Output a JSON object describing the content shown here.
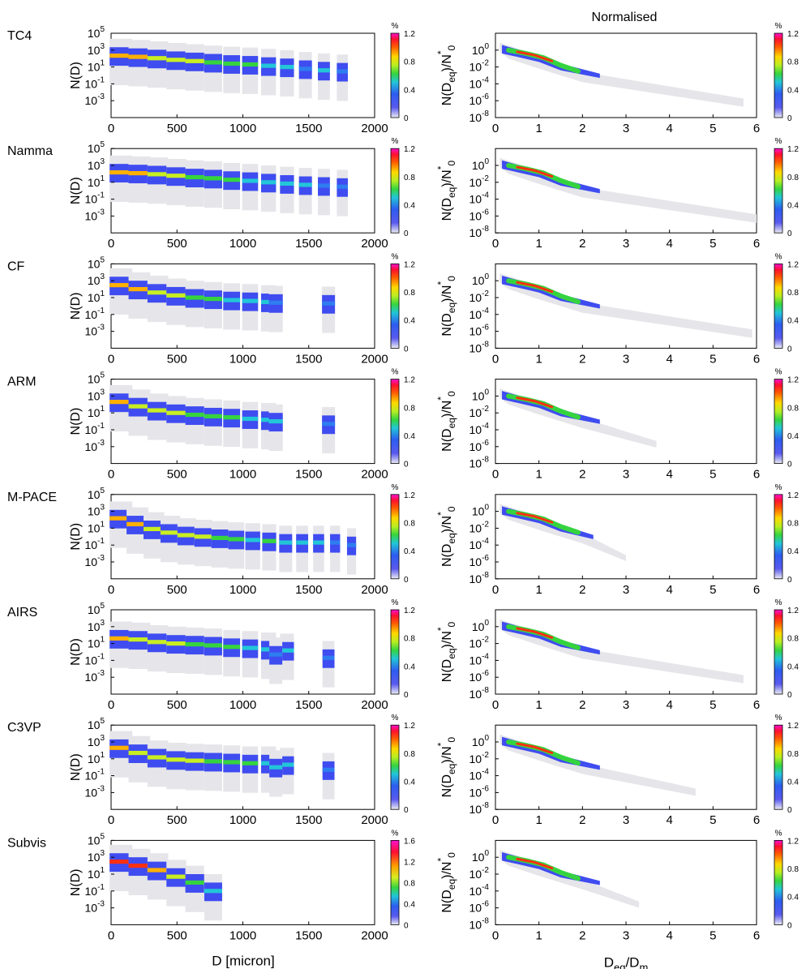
{
  "figure_title": "Normalised",
  "chart_data": {
    "type": "heatmap",
    "rows": [
      {
        "label": "TC4",
        "left_cbar_max": "1.2",
        "right_tail_end": 5.7,
        "left_peaks": [
          220,
          160,
          110,
          70,
          50,
          35,
          25,
          20,
          14,
          10,
          6,
          4,
          3
        ]
      },
      {
        "label": "Namma",
        "left_cbar_max": "1.2",
        "right_tail_end": 6.0,
        "left_peaks": [
          150,
          120,
          90,
          60,
          40,
          30,
          20,
          15,
          10,
          7,
          5,
          4,
          3
        ]
      },
      {
        "label": "CF",
        "left_cbar_max": "1.2",
        "right_tail_end": 5.9,
        "left_peaks": [
          300,
          100,
          40,
          18,
          10,
          7,
          5,
          4,
          3,
          2.5,
          2
        ]
      },
      {
        "label": "ARM",
        "left_cbar_max": "1.2",
        "right_tail_end": 3.7,
        "left_peaks": [
          200,
          60,
          20,
          10,
          6,
          4,
          3,
          2,
          1.5,
          1,
          0.5
        ]
      },
      {
        "label": "M-PACE",
        "left_cbar_max": "1.2",
        "right_tail_end": 3.0,
        "left_peaks": [
          150,
          30,
          8,
          3,
          1.5,
          1,
          0.7,
          0.5,
          0.4,
          0.3,
          0.2,
          0.2,
          0.2,
          0.2,
          0.1
        ]
      },
      {
        "label": "AIRS",
        "left_cbar_max": "1.2",
        "right_tail_end": 5.7,
        "left_peaks": [
          40,
          30,
          15,
          10,
          8,
          6,
          4,
          3,
          2,
          1.5,
          0.5,
          0.2
        ]
      },
      {
        "label": "C3VP",
        "left_cbar_max": "1.2",
        "right_tail_end": 4.6,
        "left_peaks": [
          200,
          50,
          15,
          8,
          6,
          5,
          4,
          3,
          3,
          2,
          1,
          0.5
        ]
      },
      {
        "label": "Subvis",
        "left_cbar_max": "1.6",
        "right_tail_end": 3.3,
        "left_peaks": [
          300,
          100,
          30,
          5,
          1,
          0.1
        ]
      }
    ],
    "left_panel": {
      "xlabel": "D [micron]",
      "ylabel": "N(D)",
      "xlim": [
        0,
        2000
      ],
      "xticks": [
        "0",
        "500",
        "1000",
        "1500",
        "2000"
      ],
      "ylim_exponent": [
        -5,
        5
      ],
      "ytick_exponents": [
        "5",
        "3",
        "1",
        "-1",
        "-3"
      ],
      "ytick_base": "10"
    },
    "right_panel": {
      "xlabel_main": "D",
      "xlabel_sub1": "eq",
      "xlabel_mid": "/D",
      "xlabel_sub2": "m",
      "ylabel_main": "N(D",
      "ylabel_sub": "eq",
      "ylabel_mid": ")/N",
      "ylabel_star": "*",
      "ylabel_sub0": "0",
      "xlim": [
        0,
        6
      ],
      "xticks": [
        "0",
        "1",
        "2",
        "3",
        "4",
        "5",
        "6"
      ],
      "ylim_exponent": [
        -8,
        2
      ],
      "ytick_exponents": [
        "0",
        "-2",
        "-4",
        "-6",
        "-8"
      ],
      "ytick_base": "10"
    },
    "colorbar": {
      "unit": "%",
      "ticks": [
        "0",
        "0.4",
        "0.8"
      ],
      "ticks_subvis": [
        "0",
        "0.4",
        "0.8",
        "1.2"
      ],
      "colors": [
        "#ececf0",
        "#3a3ae0",
        "#2f7df0",
        "#22d3c0",
        "#3dd63d",
        "#f0f020",
        "#ff8c00",
        "#ff1010",
        "#ff00cc"
      ]
    }
  }
}
